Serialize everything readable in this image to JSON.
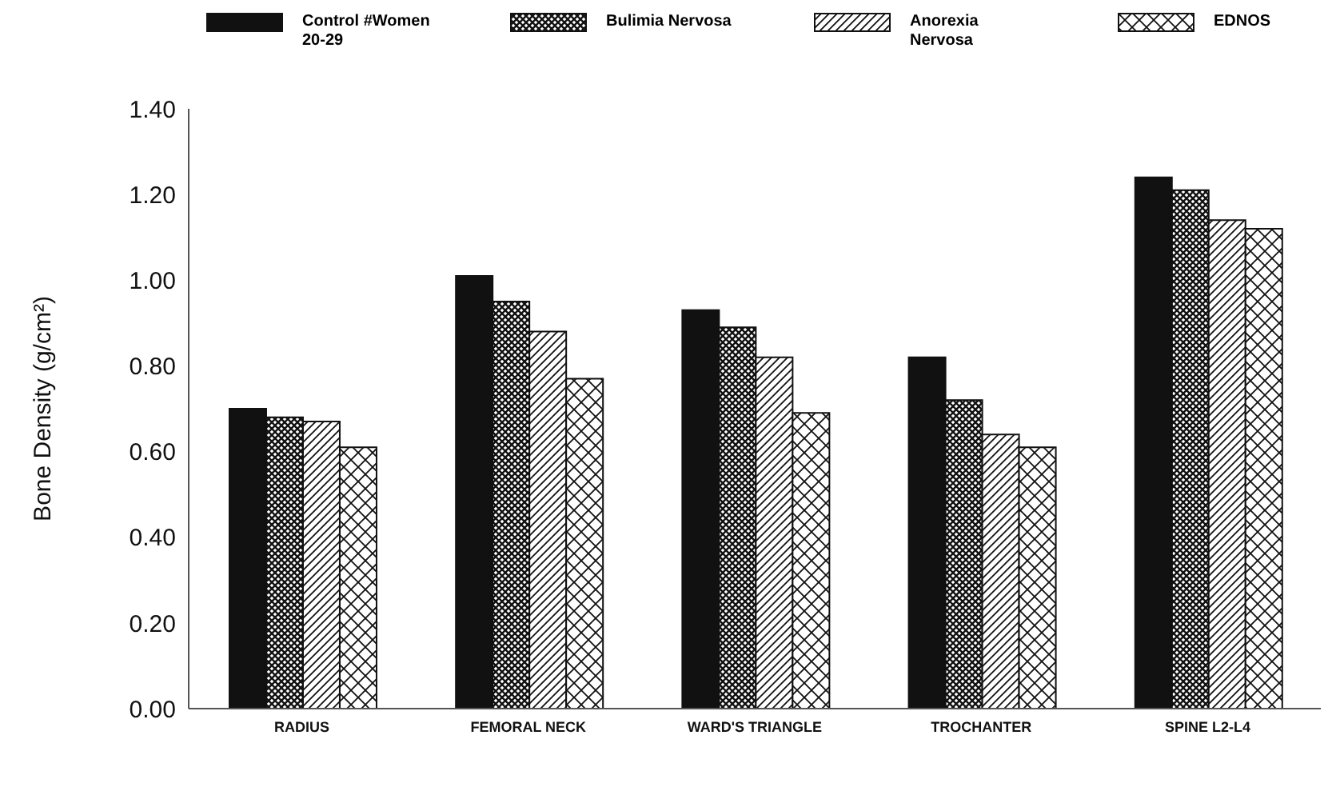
{
  "chart_data": {
    "type": "bar",
    "ylabel": "Bone Density (g/cm²)",
    "categories": [
      "RADIUS",
      "FEMORAL NECK",
      "WARD'S TRIANGLE",
      "TROCHANTER",
      "SPINE L2-L4"
    ],
    "series": [
      {
        "name": "Control #Women 20-29",
        "color": "#111111",
        "values": [
          0.7,
          1.01,
          0.93,
          0.82,
          1.24
        ]
      },
      {
        "name": "Bulimia Nervosa",
        "color": "#111111",
        "values": [
          0.68,
          0.95,
          0.89,
          0.72,
          1.21
        ]
      },
      {
        "name": "Anorexia Nervosa",
        "color": "#111111",
        "values": [
          0.67,
          0.88,
          0.82,
          0.64,
          1.14
        ]
      },
      {
        "name": "EDNOS",
        "color": "#111111",
        "values": [
          0.61,
          0.77,
          0.69,
          0.61,
          1.12
        ]
      }
    ],
    "ylim": [
      0,
      1.4
    ],
    "yticks": [
      {
        "value": 0,
        "label": "0.00"
      },
      {
        "value": 0.2,
        "label": "0.20"
      },
      {
        "value": 0.4,
        "label": "0.40"
      },
      {
        "value": 0.6,
        "label": "0.60"
      },
      {
        "value": 0.8,
        "label": "0.80"
      },
      {
        "value": 1,
        "label": "1.00"
      },
      {
        "value": 1.2,
        "label": "1.20"
      },
      {
        "value": 1.4,
        "label": "1.40"
      }
    ],
    "grid": false,
    "legend": "top"
  }
}
